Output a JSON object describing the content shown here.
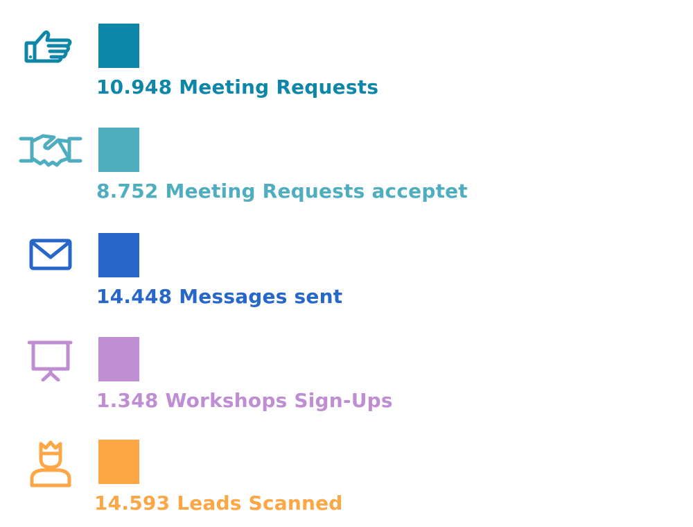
{
  "stats": [
    {
      "value": "10.948",
      "label": "Meeting Requests",
      "icon": "pointing-hand-icon",
      "color": "#0E86A7"
    },
    {
      "value": "8.752",
      "label": "Meeting Requests acceptet",
      "icon": "handshake-icon",
      "color": "#4FADC0"
    },
    {
      "value": "14.448",
      "label": "Messages sent",
      "icon": "envelope-icon",
      "color": "#2767C9"
    },
    {
      "value": "1.348",
      "label": "Workshops Sign-Ups",
      "icon": "presentation-board-icon",
      "color": "#BF8ED2"
    },
    {
      "value": "14.593",
      "label": "Leads Scanned",
      "icon": "person-crown-icon",
      "color": "#FCA645"
    }
  ]
}
